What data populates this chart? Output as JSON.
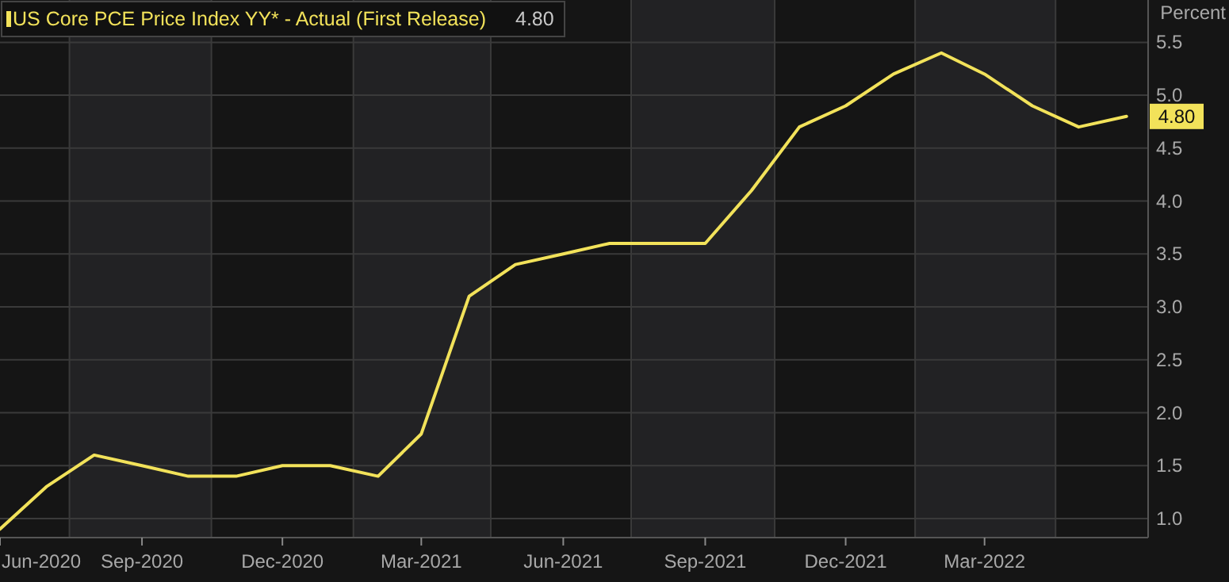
{
  "chart_data": {
    "type": "line",
    "ylabel": "Percent",
    "x": [
      "2020-06",
      "2020-07",
      "2020-08",
      "2020-09",
      "2020-10",
      "2020-11",
      "2020-12",
      "2021-01",
      "2021-02",
      "2021-03",
      "2021-04",
      "2021-05",
      "2021-06",
      "2021-07",
      "2021-08",
      "2021-09",
      "2021-10",
      "2021-11",
      "2021-12",
      "2022-01",
      "2022-02",
      "2022-03",
      "2022-04",
      "2022-05",
      "2022-06"
    ],
    "series": [
      {
        "name": "US Core PCE Price Index YY* - Actual (First Release)",
        "color": "#f2e25a",
        "values": [
          0.9,
          1.3,
          1.6,
          1.5,
          1.4,
          1.4,
          1.5,
          1.5,
          1.4,
          1.8,
          3.1,
          3.4,
          3.5,
          3.6,
          3.6,
          3.6,
          4.1,
          4.7,
          4.9,
          5.2,
          5.4,
          5.2,
          4.9,
          4.7,
          4.8
        ],
        "value_labels": [
          null,
          null,
          null,
          null,
          null,
          null,
          null,
          null,
          null,
          null,
          null,
          null,
          null,
          null,
          null,
          null,
          null,
          null,
          null,
          null,
          null,
          null,
          null,
          null,
          "4.80"
        ]
      }
    ],
    "xlim": [
      "2020-06-01",
      "2022-06-15"
    ],
    "xticks": [
      {
        "value": "2020-06",
        "label": "Jun-2020"
      },
      {
        "value": "2020-09",
        "label": "Sep-2020"
      },
      {
        "value": "2020-12",
        "label": "Dec-2020"
      },
      {
        "value": "2021-03",
        "label": "Mar-2021"
      },
      {
        "value": "2021-06",
        "label": "Jun-2021"
      },
      {
        "value": "2021-09",
        "label": "Sep-2021"
      },
      {
        "value": "2021-12",
        "label": "Dec-2021"
      },
      {
        "value": "2022-03",
        "label": "Mar-2022"
      }
    ],
    "ylim": [
      0.82,
      5.9
    ],
    "yticks": [
      {
        "value": 1,
        "label": "1.0"
      },
      {
        "value": 1.5,
        "label": "1.5"
      },
      {
        "value": 2,
        "label": "2.0"
      },
      {
        "value": 2.5,
        "label": "2.5"
      },
      {
        "value": 3,
        "label": "3.0"
      },
      {
        "value": 3.5,
        "label": "3.5"
      },
      {
        "value": 4,
        "label": "4.0"
      },
      {
        "value": 4.5,
        "label": "4.5"
      },
      {
        "value": 5,
        "label": "5.0"
      },
      {
        "value": 5.5,
        "label": "5.5"
      }
    ],
    "bands": [
      {
        "axis": "x",
        "from": "2020-07-16",
        "to": "2020-10-16",
        "color": "#222224"
      },
      {
        "axis": "x",
        "from": "2021-01-16",
        "to": "2021-04-15",
        "color": "#222224"
      },
      {
        "axis": "x",
        "from": "2021-07-15",
        "to": "2021-10-16",
        "color": "#222224"
      },
      {
        "axis": "x",
        "from": "2022-01-15",
        "to": "2022-04-16",
        "color": "#222224"
      }
    ],
    "grid": true,
    "legend": "top left",
    "marker": "none",
    "line_style": "solid"
  }
}
